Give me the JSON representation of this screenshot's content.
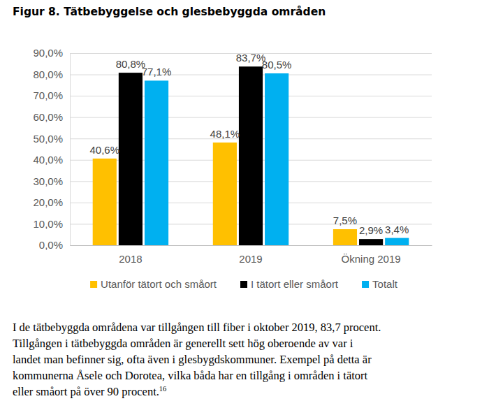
{
  "chart_data": {
    "type": "bar",
    "title": "Figur 8. Tätbebyggelse och glesbebyggda områden",
    "categories": [
      "2018",
      "2019",
      "Ökning 2019"
    ],
    "series": [
      {
        "name": "Utanför tätort och småort",
        "color": "#ffc000",
        "values": [
          40.6,
          48.1,
          7.5
        ],
        "value_labels": [
          "40,6%",
          "48,1%",
          "7,5%"
        ]
      },
      {
        "name": "I tätort eller småort",
        "color": "#000000",
        "values": [
          80.8,
          83.7,
          2.9
        ],
        "value_labels": [
          "80,8%",
          "83,7%",
          "2,9%"
        ]
      },
      {
        "name": "Totalt",
        "color": "#00b0f0",
        "values": [
          77.1,
          80.5,
          3.4
        ],
        "value_labels": [
          "77,1%",
          "80,5%",
          "3,4%"
        ]
      }
    ],
    "ylim": [
      0,
      90
    ],
    "yticks": [
      {
        "value": 0,
        "label": "0,0%"
      },
      {
        "value": 10,
        "label": "10,0%"
      },
      {
        "value": 20,
        "label": "20,0%"
      },
      {
        "value": 30,
        "label": "30,0%"
      },
      {
        "value": 40,
        "label": "40,0%"
      },
      {
        "value": 50,
        "label": "50,0%"
      },
      {
        "value": 60,
        "label": "60,0%"
      },
      {
        "value": 70,
        "label": "70,0%"
      },
      {
        "value": 80,
        "label": "80,0%"
      },
      {
        "value": 90,
        "label": "90,0%"
      }
    ],
    "grid": true,
    "legend": "bottom",
    "data_labels": true
  },
  "body_text": {
    "lines": [
      "I de tätbebyggda områdena var tillgången till fiber i oktober 2019, 83,7 procent.",
      "Tillgången i tätbebyggda områden är generellt sett hög oberoende av var i",
      "landet man befinner sig, ofta även i glesbygdskommuner. Exempel på detta är",
      "kommunerna Åsele och Dorotea, vilka båda har en tillgång i områden i tätort",
      "eller småort på över 90 procent."
    ],
    "footnote": "16"
  }
}
